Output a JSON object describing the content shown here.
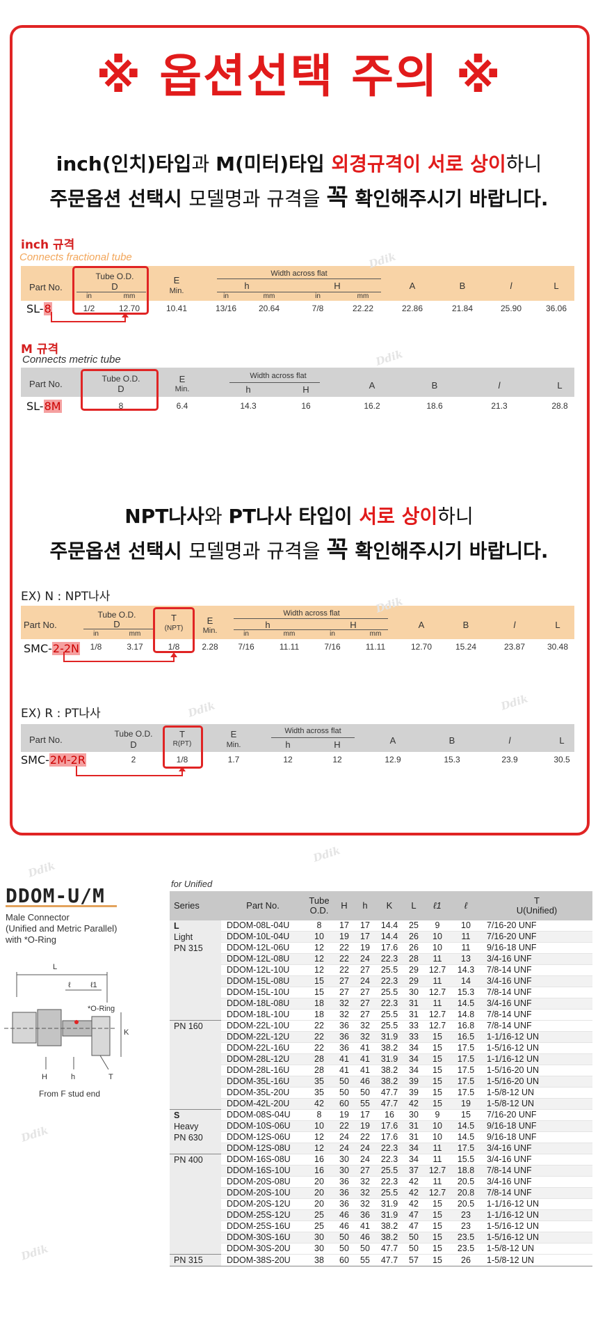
{
  "header": {
    "title": "※ 옵션선택 주의 ※"
  },
  "notice1": {
    "l1_a": "inch(인치)타입",
    "l1_b": "과 ",
    "l1_c": "M(미터)타입 ",
    "l1_d": "외경규격이 서로 상이",
    "l1_e": "하니",
    "l2_a": "주문옵션 선택시 ",
    "l2_b": "모델명과 규격을 ",
    "l2_c": "꼭",
    "l2_d": " 확인해주시기 바랍니다."
  },
  "inch_spec": {
    "label": "inch 규격",
    "sub": "Connects fractional tube",
    "h_partno": "Part No.",
    "h_tube": "Tube  O.D.",
    "h_d": "D",
    "h_in": "in",
    "h_mm": "mm",
    "h_e": "E",
    "h_min": "Min.",
    "h_waf": "Width across flat",
    "h_h": "h",
    "h_H": "H",
    "h_A": "A",
    "h_B": "B",
    "h_l": "l",
    "h_L": "L",
    "part_prefix": "SL-",
    "part_hl": "8",
    "d_in": "1/2",
    "d_mm": "12.70",
    "e": "10.41",
    "h_in_v": "13/16",
    "h_mm_v": "20.64",
    "H_in_v": "7/8",
    "H_mm_v": "22.22",
    "a": "22.86",
    "b": "21.84",
    "l": "25.90",
    "L": "36.06"
  },
  "metric_spec": {
    "label": "M 규격",
    "sub": "Connects metric tube",
    "h_partno": "Part No.",
    "h_tube": "Tube  O.D.",
    "h_d": "D",
    "h_e": "E",
    "h_min": "Min.",
    "h_waf": "Width across flat",
    "h_h": "h",
    "h_H": "H",
    "h_A": "A",
    "h_B": "B",
    "h_l": "l",
    "h_L": "L",
    "part_prefix": "SL-",
    "part_hl": "8M",
    "d": "8",
    "e": "6.4",
    "h": "14.3",
    "H": "16",
    "a": "16.2",
    "b": "18.6",
    "l": "21.3",
    "L": "28.8"
  },
  "notice2": {
    "l1_a": "NPT나사",
    "l1_b": "와 ",
    "l1_c": "PT나사 타입이 ",
    "l1_d": "서로 상이",
    "l1_e": "하니",
    "l2_a": "주문옵션 선택시 ",
    "l2_b": "모델명과 규격을 ",
    "l2_c": "꼭",
    "l2_d": " 확인해주시기 바랍니다."
  },
  "npt_spec": {
    "label": "EX) N : NPT나사",
    "h_partno": "Part No.",
    "h_tube": "Tube  O.D.",
    "h_d": "D",
    "h_in": "in",
    "h_mm": "mm",
    "h_t": "T",
    "h_t_sub": "(NPT)",
    "h_e": "E",
    "h_min": "Min.",
    "h_waf": "Width across flat",
    "h_h": "h",
    "h_H": "H",
    "h_A": "A",
    "h_B": "B",
    "h_l": "l",
    "h_L": "L",
    "part_prefix": "SMC-",
    "part_hl": "2-2N",
    "d_in": "1/8",
    "d_mm": "3.17",
    "t": "1/8",
    "e": "2.28",
    "h_in_v": "7/16",
    "h_mm_v": "11.11",
    "H_in_v": "7/16",
    "H_mm_v": "11.11",
    "a": "12.70",
    "b": "15.24",
    "l": "23.87",
    "L": "30.48"
  },
  "pt_spec": {
    "label": "EX) R : PT나사",
    "h_partno": "Part  No.",
    "h_tube": "Tube  O.D.",
    "h_d": "D",
    "h_t": "T",
    "h_t_sub": "R(PT)",
    "h_e": "E",
    "h_min": "Min.",
    "h_waf": "Width across flat",
    "h_h": "h",
    "h_H": "H",
    "h_A": "A",
    "h_B": "B",
    "h_l": "l",
    "h_L": "L",
    "part_prefix": "SMC-",
    "part_hl": "2M-2R",
    "d": "2",
    "t": "1/8",
    "e": "1.7",
    "h": "12",
    "H": "12",
    "a": "12.9",
    "b": "15.3",
    "l": "23.9",
    "L": "30.5"
  },
  "ddom": {
    "title": "DDOM-U/M",
    "desc1": "Male Connector",
    "desc2": "(Unified and Metric Parallel)",
    "desc3": "with *O-Ring",
    "stud_note": "From F stud end",
    "drawing": {
      "L": "L",
      "l": "ℓ",
      "l1": "ℓ1",
      "oring": "*O-Ring",
      "K": "K",
      "H": "H",
      "h": "h",
      "T": "T"
    },
    "for_unified": "for Unified",
    "headers": {
      "series": "Series",
      "partno": "Part No.",
      "tube1": "Tube",
      "tube2": "O.D.",
      "H": "H",
      "h": "h",
      "K": "K",
      "L": "L",
      "l1": "ℓ1",
      "l": "ℓ",
      "t1": "T",
      "t2": "U(Unified)"
    },
    "groups": [
      {
        "series": [
          "L",
          "Light",
          "PN 315"
        ],
        "rows": [
          [
            "DDOM-08L-04U",
            "8",
            "17",
            "17",
            "14.4",
            "25",
            "9",
            "10",
            "7/16-20 UNF"
          ],
          [
            "DDOM-10L-04U",
            "10",
            "19",
            "17",
            "14.4",
            "26",
            "10",
            "11",
            "7/16-20 UNF"
          ],
          [
            "DDOM-12L-06U",
            "12",
            "22",
            "19",
            "17.6",
            "26",
            "10",
            "11",
            "9/16-18 UNF"
          ],
          [
            "DDOM-12L-08U",
            "12",
            "22",
            "24",
            "22.3",
            "28",
            "11",
            "13",
            "3/4-16 UNF"
          ],
          [
            "DDOM-12L-10U",
            "12",
            "22",
            "27",
            "25.5",
            "29",
            "12.7",
            "14.3",
            "7/8-14 UNF"
          ],
          [
            "DDOM-15L-08U",
            "15",
            "27",
            "24",
            "22.3",
            "29",
            "11",
            "14",
            "3/4-16 UNF"
          ],
          [
            "DDOM-15L-10U",
            "15",
            "27",
            "27",
            "25.5",
            "30",
            "12.7",
            "15.3",
            "7/8-14 UNF"
          ],
          [
            "DDOM-18L-08U",
            "18",
            "32",
            "27",
            "22.3",
            "31",
            "11",
            "14.5",
            "3/4-16 UNF"
          ],
          [
            "DDOM-18L-10U",
            "18",
            "32",
            "27",
            "25.5",
            "31",
            "12.7",
            "14.8",
            "7/8-14 UNF"
          ]
        ]
      },
      {
        "series": [
          "PN 160"
        ],
        "rows": [
          [
            "DDOM-22L-10U",
            "22",
            "36",
            "32",
            "25.5",
            "33",
            "12.7",
            "16.8",
            "7/8-14 UNF"
          ],
          [
            "DDOM-22L-12U",
            "22",
            "36",
            "32",
            "31.9",
            "33",
            "15",
            "16.5",
            "1-1/16-12 UN"
          ],
          [
            "DDOM-22L-16U",
            "22",
            "36",
            "41",
            "38.2",
            "34",
            "15",
            "17.5",
            "1-5/16-12 UN"
          ],
          [
            "DDOM-28L-12U",
            "28",
            "41",
            "41",
            "31.9",
            "34",
            "15",
            "17.5",
            "1-1/16-12 UN"
          ],
          [
            "DDOM-28L-16U",
            "28",
            "41",
            "41",
            "38.2",
            "34",
            "15",
            "17.5",
            "1-5/16-20 UN"
          ],
          [
            "DDOM-35L-16U",
            "35",
            "50",
            "46",
            "38.2",
            "39",
            "15",
            "17.5",
            "1-5/16-20 UN"
          ],
          [
            "DDOM-35L-20U",
            "35",
            "50",
            "50",
            "47.7",
            "39",
            "15",
            "17.5",
            "1-5/8-12 UN"
          ],
          [
            "DDOM-42L-20U",
            "42",
            "60",
            "55",
            "47.7",
            "42",
            "15",
            "19",
            "1-5/8-12 UN"
          ]
        ]
      },
      {
        "series": [
          "S",
          "Heavy",
          "PN 630"
        ],
        "rows": [
          [
            "DDOM-08S-04U",
            "8",
            "19",
            "17",
            "16",
            "30",
            "9",
            "15",
            "7/16-20 UNF"
          ],
          [
            "DDOM-10S-06U",
            "10",
            "22",
            "19",
            "17.6",
            "31",
            "10",
            "14.5",
            "9/16-18 UNF"
          ],
          [
            "DDOM-12S-06U",
            "12",
            "24",
            "22",
            "17.6",
            "31",
            "10",
            "14.5",
            "9/16-18 UNF"
          ],
          [
            "DDOM-12S-08U",
            "12",
            "24",
            "24",
            "22.3",
            "34",
            "11",
            "17.5",
            "3/4-16 UNF"
          ]
        ]
      },
      {
        "series": [
          "PN 400"
        ],
        "rows": [
          [
            "DDOM-16S-08U",
            "16",
            "30",
            "24",
            "22.3",
            "34",
            "11",
            "15.5",
            "3/4-16 UNF"
          ],
          [
            "DDOM-16S-10U",
            "16",
            "30",
            "27",
            "25.5",
            "37",
            "12.7",
            "18.8",
            "7/8-14 UNF"
          ],
          [
            "DDOM-20S-08U",
            "20",
            "36",
            "32",
            "22.3",
            "42",
            "11",
            "20.5",
            "3/4-16 UNF"
          ],
          [
            "DDOM-20S-10U",
            "20",
            "36",
            "32",
            "25.5",
            "42",
            "12.7",
            "20.8",
            "7/8-14 UNF"
          ],
          [
            "DDOM-20S-12U",
            "20",
            "36",
            "32",
            "31.9",
            "42",
            "15",
            "20.5",
            "1-1/16-12 UN"
          ],
          [
            "DDOM-25S-12U",
            "25",
            "46",
            "36",
            "31.9",
            "47",
            "15",
            "23",
            "1-1/16-12 UN"
          ],
          [
            "DDOM-25S-16U",
            "25",
            "46",
            "41",
            "38.2",
            "47",
            "15",
            "23",
            "1-5/16-12 UN"
          ],
          [
            "DDOM-30S-16U",
            "30",
            "50",
            "46",
            "38.2",
            "50",
            "15",
            "23.5",
            "1-5/16-12 UN"
          ],
          [
            "DDOM-30S-20U",
            "30",
            "50",
            "50",
            "47.7",
            "50",
            "15",
            "23.5",
            "1-5/8-12 UN"
          ]
        ]
      },
      {
        "series": [
          "PN 315"
        ],
        "rows": [
          [
            "DDOM-38S-20U",
            "38",
            "60",
            "55",
            "47.7",
            "57",
            "15",
            "26",
            "1-5/8-12 UN"
          ]
        ]
      }
    ]
  },
  "watermark": "Ddik",
  "colors": {
    "accent": "#e02424",
    "band_orange": "#f8d3a6",
    "band_gray": "#d2d2d2",
    "highlight": "#f5a0a0"
  }
}
